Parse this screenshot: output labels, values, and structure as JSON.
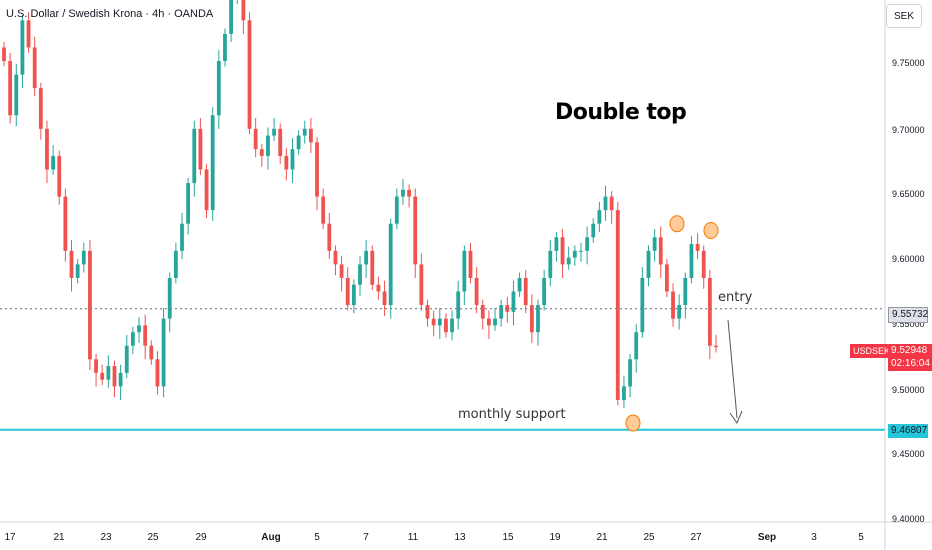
{
  "header": {
    "symbol_title": "U.S. Dollar / Swedish Krona · 4h · OANDA",
    "unit_label": "SEK"
  },
  "annotations": {
    "pattern": "Double top",
    "entry": "entry",
    "support": "monthly support"
  },
  "price_labels": {
    "entry": "9.55732",
    "support": "9.46807",
    "current": "9.52948",
    "symbol": "USDSEK",
    "timer": "02:16:04"
  },
  "colors": {
    "up": "#26a69a",
    "down": "#ef5350",
    "support_line": "#26c6da",
    "entry_line": "#787b86",
    "marker_fill": "#ffcc99",
    "marker_stroke": "#f57c00",
    "arrow": "#555555"
  },
  "chart_data": {
    "type": "candlestick",
    "y_ticks": [
      "9.75000",
      "9.70000",
      "9.65000",
      "9.60000",
      "9.55000",
      "9.50000",
      "9.45000",
      "9.40000"
    ],
    "ylim": [
      9.4,
      9.785
    ],
    "x_ticks": [
      "17",
      "21",
      "23",
      "25",
      "29",
      "Aug",
      "5",
      "7",
      "11",
      "13",
      "15",
      "19",
      "21",
      "25",
      "27",
      "Sep",
      "3",
      "5"
    ],
    "horizontal_lines": [
      {
        "name": "entry",
        "price": 9.55732,
        "style": "dotted"
      },
      {
        "name": "monthly support",
        "price": 9.46807,
        "style": "solid"
      }
    ],
    "markers": [
      {
        "label": "bottom",
        "price": 9.473
      },
      {
        "label": "top 1",
        "price": 9.62
      },
      {
        "label": "top 2",
        "price": 9.615
      }
    ],
    "closes": [
      9.74,
      9.7,
      9.73,
      9.77,
      9.75,
      9.72,
      9.69,
      9.66,
      9.67,
      9.64,
      9.6,
      9.58,
      9.59,
      9.6,
      9.52,
      9.51,
      9.505,
      9.515,
      9.5,
      9.51,
      9.53,
      9.54,
      9.545,
      9.53,
      9.52,
      9.5,
      9.55,
      9.58,
      9.6,
      9.62,
      9.65,
      9.69,
      9.66,
      9.63,
      9.7,
      9.74,
      9.76,
      9.79,
      9.8,
      9.77,
      9.69,
      9.675,
      9.67,
      9.685,
      9.69,
      9.67,
      9.66,
      9.675,
      9.685,
      9.69,
      9.68,
      9.64,
      9.62,
      9.6,
      9.59,
      9.58,
      9.56,
      9.575,
      9.59,
      9.6,
      9.575,
      9.57,
      9.56,
      9.62,
      9.64,
      9.645,
      9.64,
      9.59,
      9.56,
      9.55,
      9.545,
      9.55,
      9.54,
      9.55,
      9.57,
      9.6,
      9.58,
      9.56,
      9.55,
      9.545,
      9.55,
      9.56,
      9.555,
      9.57,
      9.58,
      9.56,
      9.54,
      9.56,
      9.58,
      9.6,
      9.61,
      9.59,
      9.595,
      9.6,
      9.6,
      9.61,
      9.62,
      9.63,
      9.64,
      9.63,
      9.49,
      9.5,
      9.52,
      9.54,
      9.58,
      9.6,
      9.61,
      9.59,
      9.57,
      9.55,
      9.56,
      9.58,
      9.605,
      9.6,
      9.58,
      9.53,
      9.529
    ]
  }
}
